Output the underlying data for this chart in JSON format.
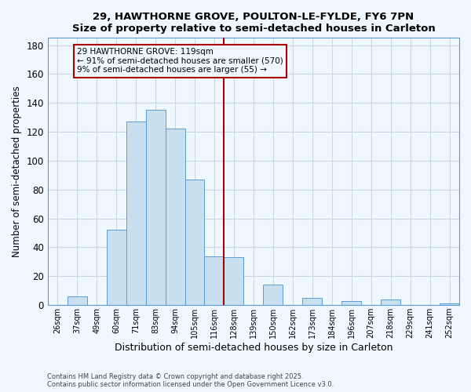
{
  "title": "29, HAWTHORNE GROVE, POULTON-LE-FYLDE, FY6 7PN",
  "subtitle": "Size of property relative to semi-detached houses in Carleton",
  "xlabel": "Distribution of semi-detached houses by size in Carleton",
  "ylabel": "Number of semi-detached properties",
  "bin_labels": [
    "26sqm",
    "37sqm",
    "49sqm",
    "60sqm",
    "71sqm",
    "83sqm",
    "94sqm",
    "105sqm",
    "116sqm",
    "128sqm",
    "139sqm",
    "150sqm",
    "162sqm",
    "173sqm",
    "184sqm",
    "196sqm",
    "207sqm",
    "218sqm",
    "229sqm",
    "241sqm",
    "252sqm"
  ],
  "bar_heights": [
    0,
    6,
    0,
    52,
    127,
    135,
    122,
    87,
    34,
    33,
    0,
    14,
    0,
    5,
    0,
    3,
    0,
    4,
    0,
    0,
    1
  ],
  "bar_color": "#c8dff0",
  "bar_edge_color": "#5b9bd5",
  "vline_color": "#aa0000",
  "annotation_title": "29 HAWTHORNE GROVE: 119sqm",
  "annotation_line1": "← 91% of semi-detached houses are smaller (570)",
  "annotation_line2": "9% of semi-detached houses are larger (55) →",
  "annotation_box_edge": "#aa0000",
  "ylim": [
    0,
    185
  ],
  "yticks": [
    0,
    20,
    40,
    60,
    80,
    100,
    120,
    140,
    160,
    180
  ],
  "footer_line1": "Contains HM Land Registry data © Crown copyright and database right 2025.",
  "footer_line2": "Contains public sector information licensed under the Open Government Licence v3.0.",
  "bg_color": "#f0f8ff",
  "grid_color": "#c8d8e8",
  "spine_color": "#5b9bd5"
}
